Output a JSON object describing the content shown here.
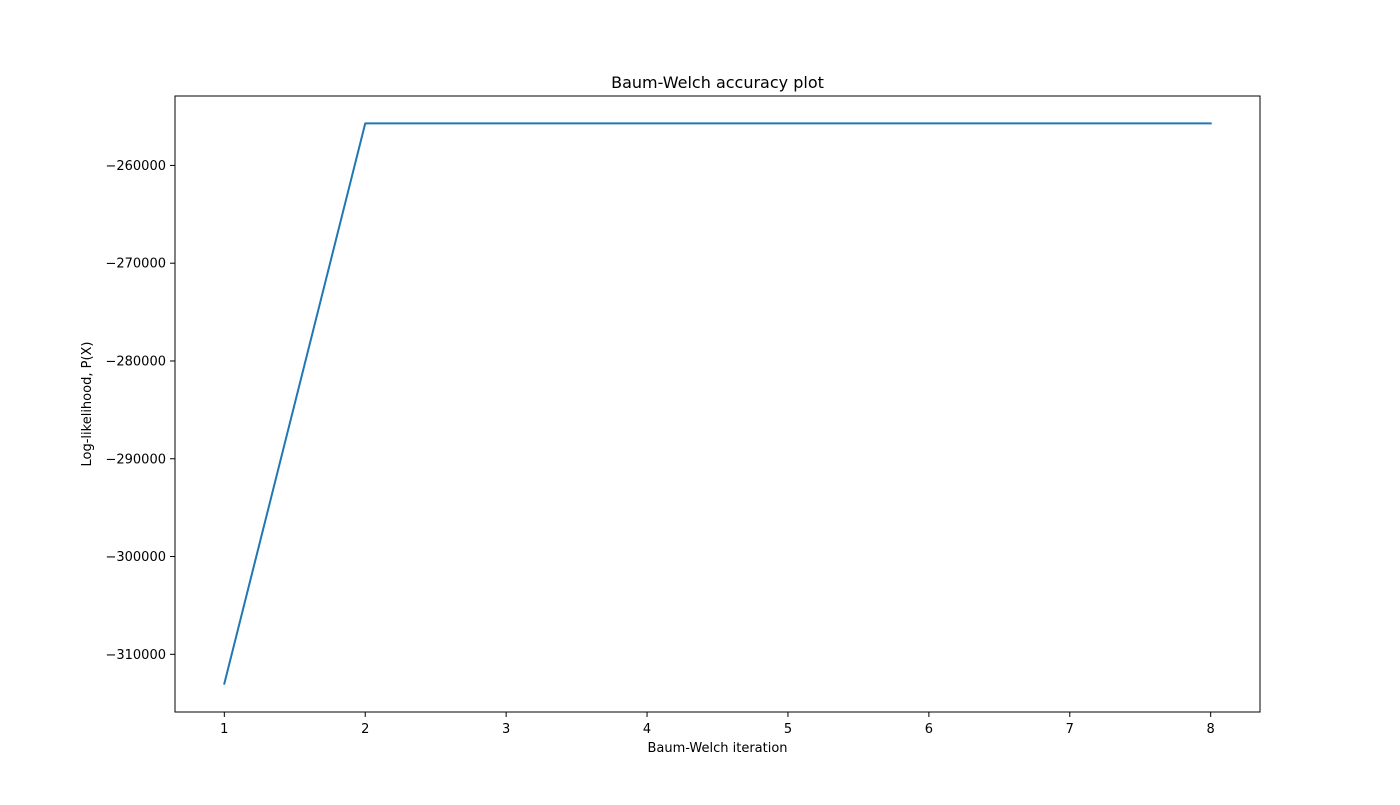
{
  "chart_data": {
    "type": "line",
    "title": "Baum-Welch accuracy plot",
    "xlabel": "Baum-Welch iteration",
    "ylabel": "Log-likelihood, P(X)",
    "xlim": [
      0.65,
      8.35
    ],
    "ylim": [
      -315900,
      -252900
    ],
    "x_ticks": [
      1,
      2,
      3,
      4,
      5,
      6,
      7,
      8
    ],
    "x_tick_labels": [
      "1",
      "2",
      "3",
      "4",
      "5",
      "6",
      "7",
      "8"
    ],
    "y_ticks": [
      -310000,
      -300000,
      -290000,
      -280000,
      -270000,
      -260000
    ],
    "y_tick_labels": [
      "−310000",
      "−300000",
      "−290000",
      "−280000",
      "−270000",
      "−260000"
    ],
    "grid": false,
    "series": [
      {
        "color": "#1f77b4",
        "x": [
          1,
          2,
          3,
          4,
          5,
          6,
          7,
          8
        ],
        "y": [
          -313000,
          -255700,
          -255700,
          -255700,
          -255700,
          -255700,
          -255700,
          -255700
        ]
      }
    ]
  }
}
